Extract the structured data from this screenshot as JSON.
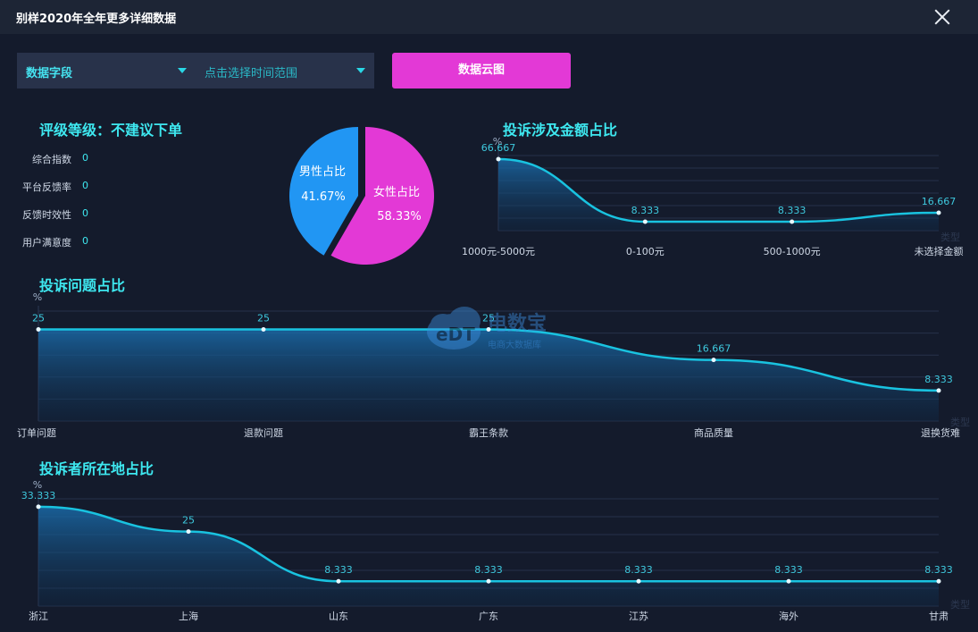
{
  "window": {
    "title": "别样2020年全年更多详细数据"
  },
  "filters": {
    "field_select": "数据字段",
    "time_select": "点击选择时间范围",
    "cloud_button": "数据云图"
  },
  "rating": {
    "title": "评级等级：不建议下单",
    "metrics": [
      {
        "label": "综合指数",
        "value": "0"
      },
      {
        "label": "平台反馈率",
        "value": "0"
      },
      {
        "label": "反馈时效性",
        "value": "0"
      },
      {
        "label": "用户满意度",
        "value": "0"
      }
    ]
  },
  "watermark": {
    "logo": "eDT",
    "brand": "电数宝",
    "tagline": "电商大数据库"
  },
  "colors": {
    "line": "#19c3e0",
    "pie_male": "#2196f3",
    "pie_female": "#e339d6",
    "title": "#3ee8f0"
  },
  "chart_data": [
    {
      "type": "pie",
      "name": "gender",
      "slices": [
        {
          "label": "男性占比",
          "value": 41.67,
          "display": "41.67%",
          "color": "#2196f3"
        },
        {
          "label": "女性占比",
          "value": 58.33,
          "display": "58.33%",
          "color": "#e339d6"
        }
      ]
    },
    {
      "type": "area",
      "title": "投诉涉及金额占比",
      "ylabel": "%",
      "xlabel": "类型",
      "categories": [
        "1000元-5000元",
        "0-100元",
        "500-1000元",
        "未选择金额"
      ],
      "values": [
        66.667,
        8.333,
        8.333,
        16.667
      ],
      "ylim": [
        0,
        70
      ]
    },
    {
      "type": "area",
      "title": "投诉问题占比",
      "ylabel": "%",
      "xlabel": "类型",
      "categories": [
        "订单问题",
        "退款问题",
        "霸王条款",
        "商品质量",
        "退换货难"
      ],
      "values": [
        25,
        25,
        25,
        16.667,
        8.333
      ],
      "ylim": [
        0,
        30
      ]
    },
    {
      "type": "area",
      "title": "投诉者所在地占比",
      "ylabel": "%",
      "xlabel": "类型",
      "categories": [
        "浙江",
        "上海",
        "山东",
        "广东",
        "江苏",
        "海外",
        "甘肃"
      ],
      "values": [
        33.333,
        25,
        8.333,
        8.333,
        8.333,
        8.333,
        8.333
      ],
      "ylim": [
        0,
        36
      ]
    }
  ]
}
